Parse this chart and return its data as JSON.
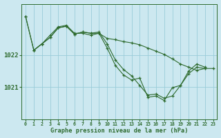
{
  "background_color": "#cce8f0",
  "grid_color": "#99ccd9",
  "line_color": "#2d6a2d",
  "marker_color": "#2d6a2d",
  "xlabel": "Graphe pression niveau de la mer (hPa)",
  "xlim": [
    -0.5,
    23.5
  ],
  "ylim": [
    1020.0,
    1023.6
  ],
  "yticks": [
    1021.0,
    1022.0
  ],
  "xticks": [
    0,
    1,
    2,
    3,
    4,
    5,
    6,
    7,
    8,
    9,
    10,
    11,
    12,
    13,
    14,
    15,
    16,
    17,
    18,
    19,
    20,
    21,
    22,
    23
  ],
  "s1_x": [
    0,
    1,
    2,
    3,
    4,
    5,
    6,
    7,
    8,
    9,
    10,
    11,
    12,
    13,
    14,
    15,
    16,
    17,
    18,
    19,
    20,
    21,
    22
  ],
  "s1_y": [
    1023.2,
    1022.15,
    1022.35,
    1022.55,
    1022.85,
    1022.9,
    1022.65,
    1022.72,
    1022.68,
    1022.72,
    1022.35,
    1021.85,
    1021.55,
    1021.35,
    1021.05,
    1020.75,
    1020.78,
    1020.65,
    1020.72,
    1021.05,
    1021.5,
    1021.72,
    1021.62
  ],
  "s2_x": [
    1,
    2,
    3,
    4,
    5,
    6,
    7,
    8,
    9,
    10,
    11,
    12,
    13,
    14,
    15,
    16,
    17,
    18,
    19,
    20,
    21,
    22
  ],
  "s2_y": [
    1022.15,
    1022.35,
    1022.55,
    1022.85,
    1022.9,
    1022.65,
    1022.72,
    1022.68,
    1022.68,
    1022.52,
    1022.48,
    1022.42,
    1022.38,
    1022.32,
    1022.22,
    1022.12,
    1022.02,
    1021.88,
    1021.72,
    1021.62,
    1021.52,
    1021.58
  ],
  "s3_x": [
    0,
    1,
    2,
    3,
    4,
    5,
    6,
    7,
    8,
    9,
    10,
    11,
    12,
    13,
    14,
    15,
    16,
    17,
    18,
    19,
    20,
    21,
    22,
    23
  ],
  "s3_y": [
    1023.2,
    1022.15,
    1022.35,
    1022.62,
    1022.88,
    1022.93,
    1022.68,
    1022.68,
    1022.62,
    1022.68,
    1022.22,
    1021.68,
    1021.38,
    1021.22,
    1021.28,
    1020.68,
    1020.72,
    1020.58,
    1020.98,
    1021.05,
    1021.42,
    1021.62,
    1021.58,
    1021.58
  ]
}
